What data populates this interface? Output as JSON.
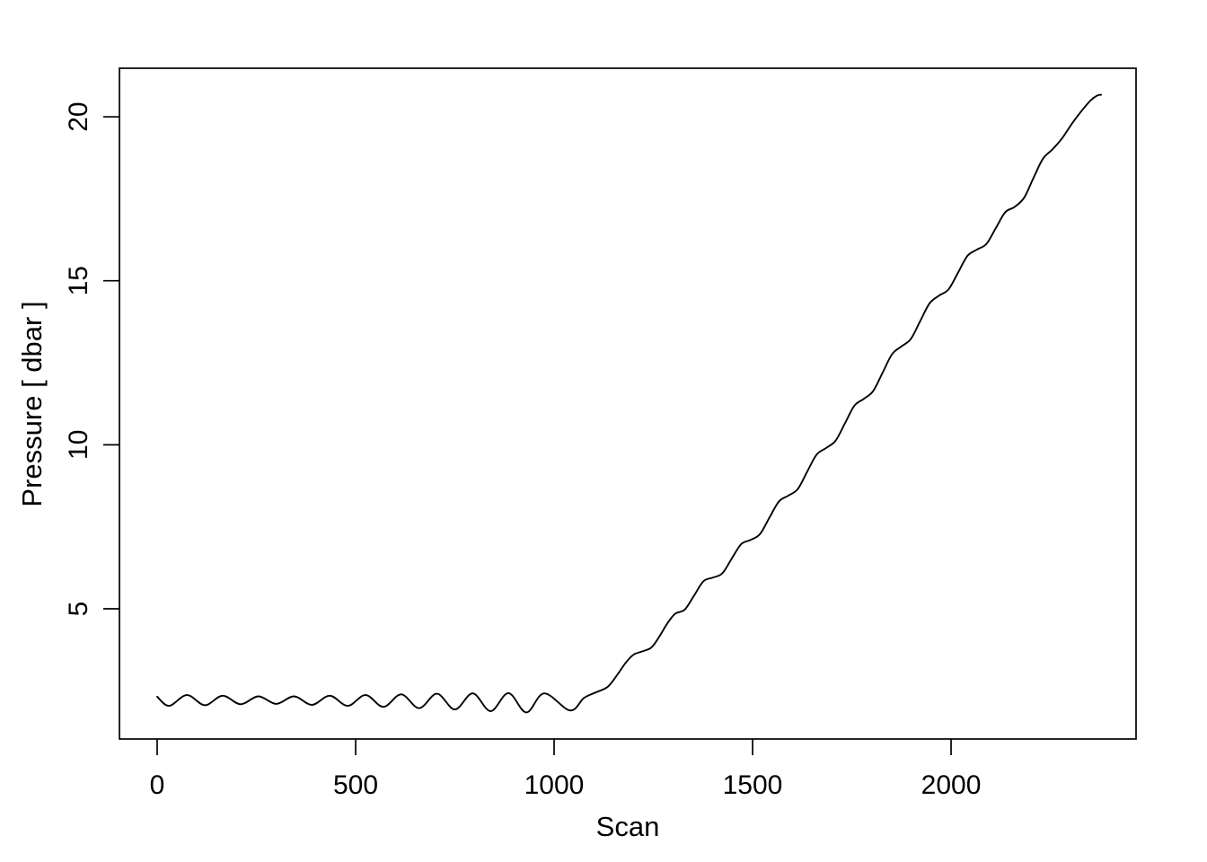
{
  "figure": {
    "background": "#ffffff",
    "line_color": "#000000",
    "text_color": "#000000"
  },
  "chart_data": {
    "type": "line",
    "title": "",
    "xlabel": "Scan",
    "ylabel": "Pressure [ dbar ]",
    "x_ticks": [
      0,
      500,
      1000,
      1500,
      2000
    ],
    "y_ticks": [
      5,
      10,
      15,
      20
    ],
    "xlim": [
      -95,
      2466
    ],
    "ylim": [
      1.03,
      21.48
    ],
    "grid": false,
    "legend": null,
    "description": "Pressure versus scan number: near-constant ~2.2 dbar with wave oscillations up to scan ~1100, then a steady wiggly descent ramp reaching ~20.7 dbar by scan ~2375",
    "series": [
      {
        "name": "pressure",
        "color": "#000000",
        "points": [
          [
            0,
            2.32
          ],
          [
            30,
            2.04
          ],
          [
            75,
            2.37
          ],
          [
            120,
            2.06
          ],
          [
            165,
            2.35
          ],
          [
            210,
            2.09
          ],
          [
            255,
            2.33
          ],
          [
            300,
            2.1
          ],
          [
            345,
            2.33
          ],
          [
            390,
            2.07
          ],
          [
            435,
            2.35
          ],
          [
            480,
            2.04
          ],
          [
            525,
            2.37
          ],
          [
            570,
            2.01
          ],
          [
            615,
            2.39
          ],
          [
            660,
            1.97
          ],
          [
            705,
            2.41
          ],
          [
            750,
            1.93
          ],
          [
            795,
            2.42
          ],
          [
            840,
            1.88
          ],
          [
            885,
            2.43
          ],
          [
            930,
            1.84
          ],
          [
            975,
            2.42
          ],
          [
            1040,
            1.9
          ],
          [
            1075,
            2.28
          ],
          [
            1105,
            2.45
          ],
          [
            1135,
            2.62
          ],
          [
            1160,
            3.0
          ],
          [
            1180,
            3.35
          ],
          [
            1200,
            3.6
          ],
          [
            1222,
            3.7
          ],
          [
            1245,
            3.82
          ],
          [
            1265,
            4.15
          ],
          [
            1285,
            4.55
          ],
          [
            1305,
            4.85
          ],
          [
            1328.8,
            4.97
          ],
          [
            1352.5,
            5.4
          ],
          [
            1376.3,
            5.84
          ],
          [
            1400,
            5.95
          ],
          [
            1423.8,
            6.08
          ],
          [
            1447.5,
            6.53
          ],
          [
            1471.3,
            6.97
          ],
          [
            1495,
            7.1
          ],
          [
            1518.8,
            7.28
          ],
          [
            1542.5,
            7.78
          ],
          [
            1566.3,
            8.27
          ],
          [
            1590,
            8.45
          ],
          [
            1613.8,
            8.65
          ],
          [
            1637.5,
            9.18
          ],
          [
            1661.3,
            9.7
          ],
          [
            1685,
            9.9
          ],
          [
            1708.8,
            10.12
          ],
          [
            1732.5,
            10.65
          ],
          [
            1756.3,
            11.19
          ],
          [
            1780,
            11.4
          ],
          [
            1803.8,
            11.64
          ],
          [
            1827.5,
            12.2
          ],
          [
            1851.3,
            12.76
          ],
          [
            1875,
            13.0
          ],
          [
            1898.8,
            13.23
          ],
          [
            1922.5,
            13.78
          ],
          [
            1946.3,
            14.32
          ],
          [
            1970,
            14.55
          ],
          [
            1993.8,
            14.74
          ],
          [
            2017.5,
            15.25
          ],
          [
            2041.3,
            15.76
          ],
          [
            2065,
            15.95
          ],
          [
            2088.8,
            16.12
          ],
          [
            2112.5,
            16.6
          ],
          [
            2136.3,
            17.09
          ],
          [
            2160,
            17.25
          ],
          [
            2183.8,
            17.53
          ],
          [
            2207.5,
            18.13
          ],
          [
            2231.3,
            18.72
          ],
          [
            2255,
            19.0
          ],
          [
            2280,
            19.35
          ],
          [
            2305,
            19.8
          ],
          [
            2330,
            20.2
          ],
          [
            2350,
            20.48
          ],
          [
            2362,
            20.6
          ],
          [
            2371,
            20.66
          ],
          [
            2378,
            20.67
          ]
        ]
      }
    ]
  }
}
